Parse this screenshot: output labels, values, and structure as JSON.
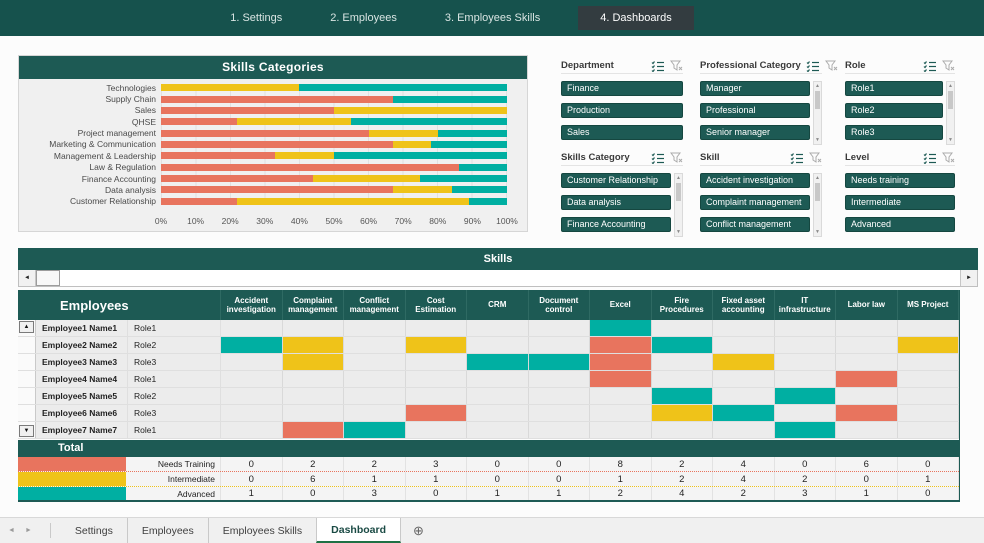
{
  "colors": {
    "teal_header": "#1D5A54",
    "nav_background": "#16524D",
    "active_nav_tab": "#333C40",
    "needs_training": "#E8745E",
    "intermediate": "#EFC319",
    "advanced": "#00AFA2",
    "sheet_active_underline": "#1E7145"
  },
  "icons": {
    "up": "▲",
    "down": "▼",
    "left": "◄",
    "right": "►",
    "new_sheet": "⊕"
  },
  "top_nav": {
    "tabs": [
      {
        "label": "1. Settings",
        "active": false
      },
      {
        "label": "2. Employees",
        "active": false
      },
      {
        "label": "3. Employees Skills",
        "active": false
      },
      {
        "label": "4. Dashboards",
        "active": true
      }
    ]
  },
  "chart_data": {
    "type": "bar",
    "stacked": true,
    "orientation": "horizontal",
    "title": "Skills Categories",
    "xlabel": "",
    "ylabel": "",
    "xlim": [
      0,
      100
    ],
    "grid": true,
    "legend_position": "none",
    "categories": [
      "Technologies",
      "Supply Chain",
      "Sales",
      "QHSE",
      "Project management",
      "Marketing & Communication",
      "Management & Leadership",
      "Law & Regulation",
      "Finance Accounting",
      "Data analysis",
      "Customer Relationship"
    ],
    "series": [
      {
        "name": "Needs Training",
        "color": "#E8745E",
        "values": [
          0,
          67,
          50,
          22,
          60,
          67,
          33,
          86,
          44,
          67,
          22
        ]
      },
      {
        "name": "Intermediate",
        "color": "#EFC319",
        "values": [
          40,
          0,
          50,
          33,
          20,
          11,
          17,
          0,
          31,
          17,
          67
        ]
      },
      {
        "name": "Advanced",
        "color": "#00AFA2",
        "values": [
          60,
          33,
          0,
          45,
          20,
          22,
          50,
          14,
          25,
          16,
          11
        ]
      }
    ],
    "x_ticks": [
      "0%",
      "10%",
      "20%",
      "30%",
      "40%",
      "50%",
      "60%",
      "70%",
      "80%",
      "90%",
      "100%"
    ]
  },
  "slicers": [
    {
      "title": "Department",
      "items": [
        "Finance",
        "Production",
        "Sales"
      ],
      "scrollbar": false
    },
    {
      "title": "Professional Category",
      "items": [
        "Manager",
        "Professional",
        "Senior manager"
      ],
      "scrollbar": true
    },
    {
      "title": "Role",
      "items": [
        "Role1",
        "Role2",
        "Role3"
      ],
      "scrollbar": true
    },
    {
      "title": "Skills Category",
      "items": [
        "Customer Relationship",
        "Data analysis",
        "Finance Accounting"
      ],
      "scrollbar": true
    },
    {
      "title": "Skill",
      "items": [
        "Accident investigation",
        "Complaint management",
        "Conflict management"
      ],
      "scrollbar": true
    },
    {
      "title": "Level",
      "items": [
        "Needs training",
        "Intermediate",
        "Advanced"
      ],
      "scrollbar": false
    }
  ],
  "skills_table": {
    "title": "Skills",
    "row_header": "Employees",
    "columns": [
      "Accident investigation",
      "Complaint management",
      "Conflict management",
      "Cost Estimation",
      "CRM",
      "Document control",
      "Excel",
      "Fire Procedures",
      "Fixed asset accounting",
      "IT infrastructure",
      "Labor law",
      "MS Project"
    ],
    "levels": {
      "needs": "#E8745E",
      "intermediate": "#EFC319",
      "advanced": "#00AFA2"
    },
    "rows": [
      {
        "name": "Employee1 Name1",
        "role": "Role1",
        "cells": [
          "",
          "",
          "",
          "",
          "",
          "",
          "advanced",
          "",
          "",
          "",
          "",
          ""
        ]
      },
      {
        "name": "Employee2 Name2",
        "role": "Role2",
        "cells": [
          "advanced",
          "intermediate",
          "",
          "intermediate",
          "",
          "",
          "needs",
          "advanced",
          "",
          "",
          "",
          "intermediate"
        ]
      },
      {
        "name": "Employee3 Name3",
        "role": "Role3",
        "cells": [
          "",
          "intermediate",
          "",
          "",
          "advanced",
          "advanced",
          "needs",
          "",
          "intermediate",
          "",
          "",
          ""
        ]
      },
      {
        "name": "Employee4 Name4",
        "role": "Role1",
        "cells": [
          "",
          "",
          "",
          "",
          "",
          "",
          "needs",
          "",
          "",
          "",
          "needs",
          ""
        ]
      },
      {
        "name": "Employee5 Name5",
        "role": "Role2",
        "cells": [
          "",
          "",
          "",
          "",
          "",
          "",
          "",
          "advanced",
          "",
          "advanced",
          "",
          ""
        ]
      },
      {
        "name": "Employee6 Name6",
        "role": "Role3",
        "cells": [
          "",
          "",
          "",
          "needs",
          "",
          "",
          "",
          "intermediate",
          "advanced",
          "",
          "needs",
          ""
        ]
      },
      {
        "name": "Employee7 Name7",
        "role": "Role1",
        "cells": [
          "",
          "needs",
          "advanced",
          "",
          "",
          "",
          "",
          "",
          "",
          "advanced",
          "",
          ""
        ]
      }
    ]
  },
  "totals": {
    "title": "Total",
    "rows": [
      {
        "label": "Needs Training",
        "level": "needs",
        "values": [
          0,
          2,
          2,
          3,
          0,
          0,
          8,
          2,
          4,
          0,
          6,
          0
        ]
      },
      {
        "label": "Intermediate",
        "level": "intermediate",
        "values": [
          0,
          6,
          1,
          1,
          0,
          0,
          1,
          2,
          4,
          2,
          0,
          1
        ]
      },
      {
        "label": "Advanced",
        "level": "advanced",
        "values": [
          1,
          0,
          3,
          0,
          1,
          1,
          2,
          4,
          2,
          3,
          1,
          0
        ]
      }
    ]
  },
  "sheet_bar": {
    "tabs": [
      {
        "label": "Settings",
        "active": false
      },
      {
        "label": "Employees",
        "active": false
      },
      {
        "label": "Employees Skills",
        "active": false
      },
      {
        "label": "Dashboard",
        "active": true
      }
    ]
  }
}
